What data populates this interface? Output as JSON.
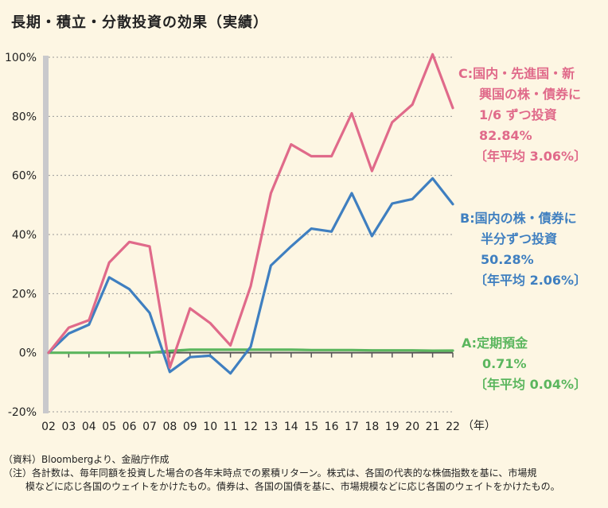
{
  "title": "長期・積立・分散投資の効果（実績）",
  "chart_data": {
    "type": "line",
    "x": [
      "02",
      "03",
      "04",
      "05",
      "06",
      "07",
      "08",
      "09",
      "10",
      "11",
      "12",
      "13",
      "14",
      "15",
      "16",
      "17",
      "18",
      "19",
      "20",
      "21",
      "22"
    ],
    "x_unit": "（年）",
    "ylim": [
      -20,
      100
    ],
    "yticks": [
      "100%",
      "80%",
      "60%",
      "40%",
      "20%",
      "0%",
      "-20%"
    ],
    "ytick_values": [
      100,
      80,
      60,
      40,
      20,
      0,
      -20
    ],
    "series": [
      {
        "name": "C:国内・先進国・新興国の株・債券に1/6ずつ投資",
        "color": "#e06a8a",
        "values": [
          0,
          8.5,
          11,
          30.5,
          37.5,
          36,
          -5,
          15,
          10,
          2.5,
          22.5,
          54,
          70.5,
          66.5,
          66.5,
          81,
          61.5,
          78,
          84,
          101,
          82.84
        ]
      },
      {
        "name": "B:国内の株・債券に半分ずつ投資",
        "color": "#3f7fc0",
        "values": [
          0,
          6.5,
          9.5,
          25.5,
          21.5,
          13.5,
          -6.5,
          -1.5,
          -1,
          -7,
          2,
          29.5,
          36,
          42,
          41,
          54,
          39.5,
          50.5,
          52,
          59,
          50.28
        ]
      },
      {
        "name": "A:定期預金",
        "color": "#5bb65e",
        "values": [
          0,
          0,
          0,
          0,
          0,
          0,
          0.6,
          1,
          1,
          1,
          1,
          1,
          1,
          0.9,
          0.9,
          0.9,
          0.8,
          0.8,
          0.8,
          0.7,
          0.71
        ]
      }
    ]
  },
  "legend": {
    "c": {
      "line1": "C:国内・先進国・新",
      "line2": "興国の株・債券に",
      "line3": "1/6 ずつ投資",
      "value": "82.84%",
      "annual": "〔年平均 3.06%〕"
    },
    "b": {
      "line1": "B:国内の株・債券に",
      "line2": "半分ずつ投資",
      "value": "50.28%",
      "annual": "〔年平均 2.06%〕"
    },
    "a": {
      "line1": "A:定期預金",
      "value": "0.71%",
      "annual": "〔年平均 0.04%〕"
    }
  },
  "notes": {
    "source": "（資料）Bloombergより、金融庁作成",
    "note1": "（注）各計数は、毎年同額を投資した場合の各年末時点での累積リターン。株式は、各国の代表的な株価指数を基に、市場規",
    "note2": "模などに応じ各国のウェイトをかけたもの。債券は、各国の国債を基に、市場規模などに応じ各国のウェイトをかけたもの。"
  }
}
